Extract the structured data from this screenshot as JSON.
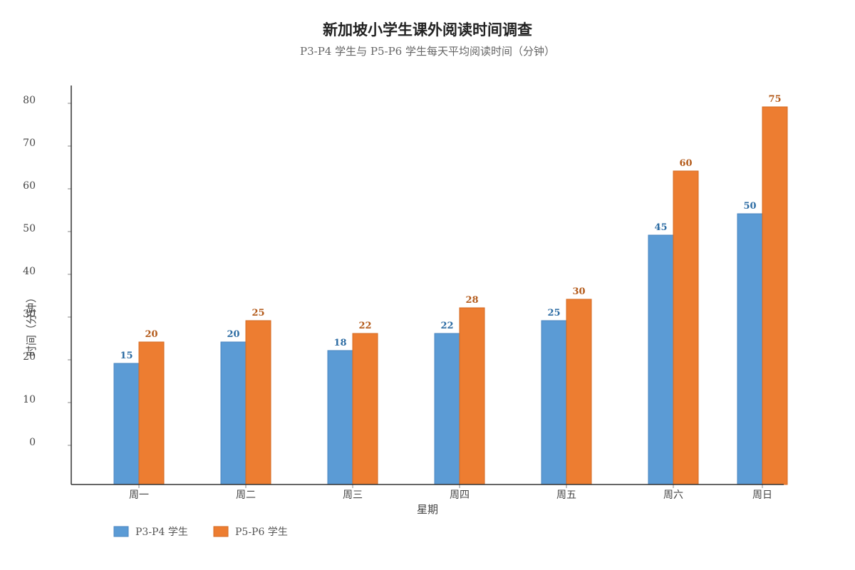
{
  "chart_data": {
    "type": "bar",
    "title": "新加坡小学生课外阅读时间调查",
    "subtitle": "P3-P4 学生与 P5-P6 学生每天平均阅读时间（分钟）",
    "xlabel": "星期",
    "ylabel": "时间（分钟）",
    "categories": [
      "周一",
      "周二",
      "周三",
      "周四",
      "周五",
      "周六",
      "周日"
    ],
    "ylim": [
      0,
      80
    ],
    "yticks": [
      0,
      10,
      20,
      30,
      40,
      50,
      60,
      70,
      80
    ],
    "series": [
      {
        "name": "P3-P4 学生",
        "values": [
          15,
          20,
          18,
          22,
          25,
          45,
          50
        ],
        "color": "#5b9bd5",
        "stroke": "#4a86c0",
        "label_color": "#2e6da4"
      },
      {
        "name": "P5-P6 学生",
        "values": [
          20,
          25,
          22,
          28,
          30,
          60,
          75
        ],
        "color": "#ed7d31",
        "stroke": "#d46a22",
        "label_color": "#b35a1a"
      }
    ],
    "grid": false,
    "legend": "bottom-left"
  }
}
